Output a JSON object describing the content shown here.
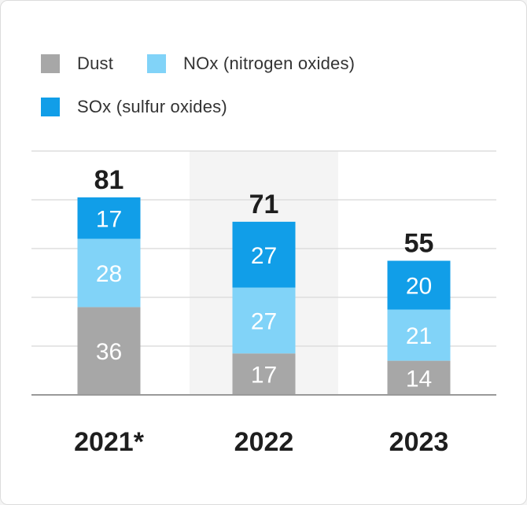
{
  "colors": {
    "dust": "#a7a7a7",
    "nox": "#81d3f8",
    "sox": "#119ee8",
    "highlight": "#f4f4f4",
    "grid": "#dddddd",
    "baseline": "#999999"
  },
  "legend": [
    {
      "label": "Dust",
      "color": "#a7a7a7"
    },
    {
      "label": "NOx (nitrogen oxides)",
      "color": "#81d3f8"
    },
    {
      "label": "SOx (sulfur oxides)",
      "color": "#119ee8"
    }
  ],
  "chart_data": {
    "type": "bar",
    "stacked": true,
    "categories": [
      "2021*",
      "2022",
      "2023"
    ],
    "series": [
      {
        "name": "Dust",
        "values": [
          36,
          17,
          14
        ]
      },
      {
        "name": "NOx (nitrogen oxides)",
        "values": [
          28,
          27,
          21
        ]
      },
      {
        "name": "SOx (sulfur oxides)",
        "values": [
          17,
          27,
          20
        ]
      }
    ],
    "totals": [
      81,
      71,
      55
    ],
    "highlighted_category": "2022",
    "ylim": [
      0,
      100
    ],
    "grid": true,
    "legend_position": "top-left"
  }
}
